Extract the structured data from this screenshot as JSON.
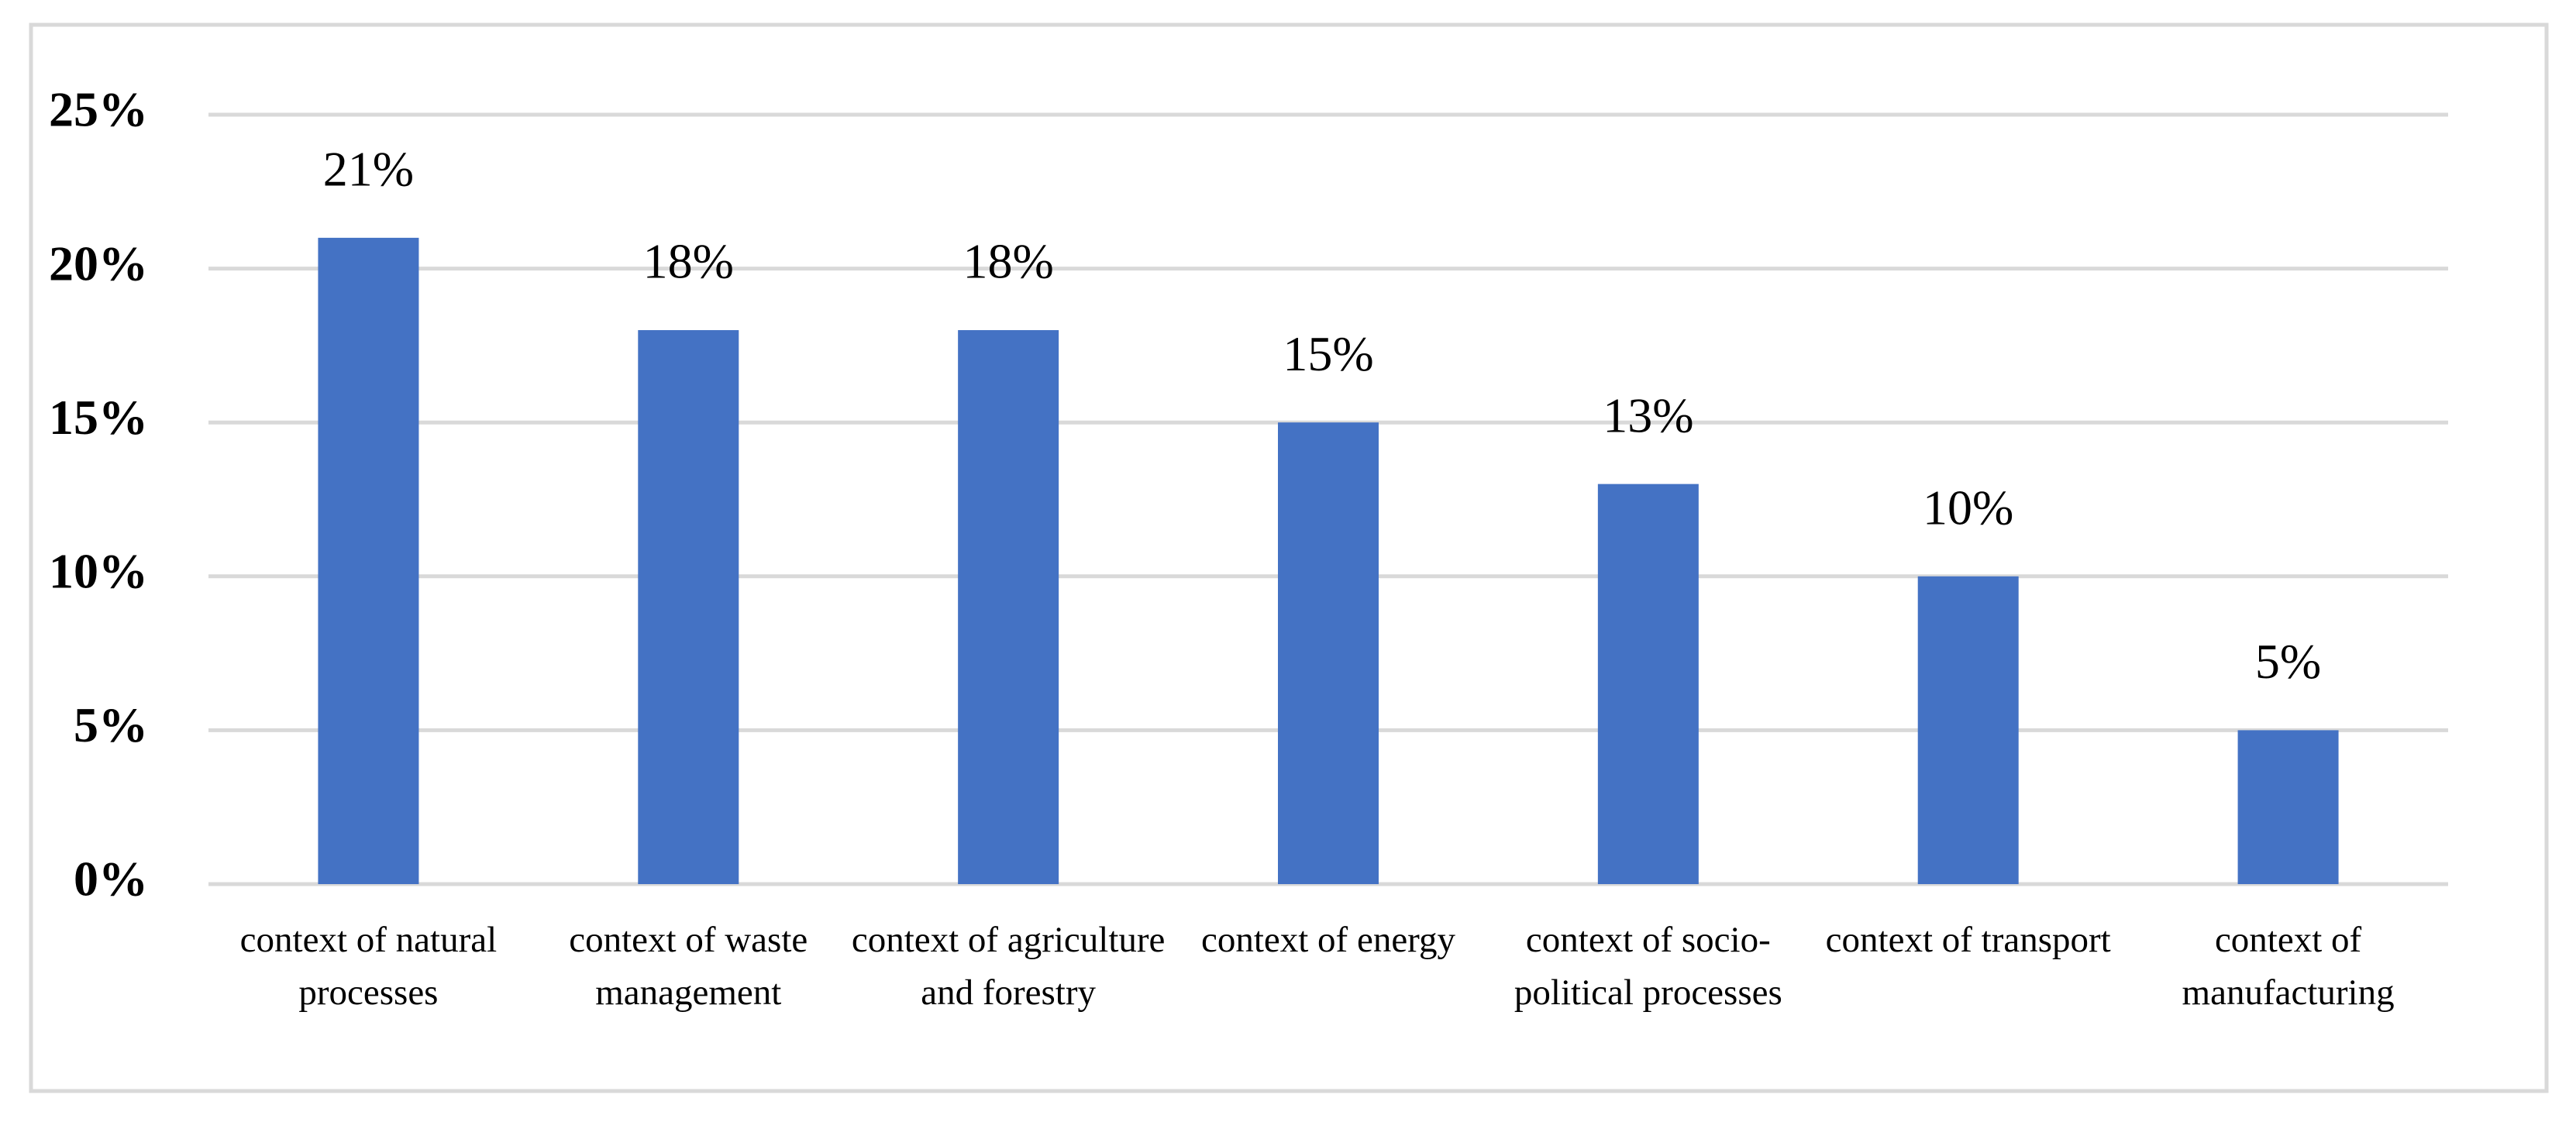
{
  "chart_data": {
    "type": "bar",
    "categories": [
      "context of natural processes",
      "context of waste management",
      "context of agriculture and forestry",
      "context of energy",
      "context of socio-political processes",
      "context of transport",
      "context of manufacturing"
    ],
    "values": [
      21,
      18,
      18,
      15,
      13,
      10,
      5
    ],
    "value_labels": [
      "21%",
      "18%",
      "18%",
      "15%",
      "13%",
      "10%",
      "5%"
    ],
    "color": "#4472c4",
    "ylim": [
      0,
      25
    ],
    "yticks": [
      {
        "value": 0,
        "label": "0%"
      },
      {
        "value": 5,
        "label": "5%"
      },
      {
        "value": 10,
        "label": "10%"
      },
      {
        "value": 15,
        "label": "15%"
      },
      {
        "value": 20,
        "label": "20%"
      },
      {
        "value": 25,
        "label": "25%"
      }
    ],
    "grid": true
  }
}
